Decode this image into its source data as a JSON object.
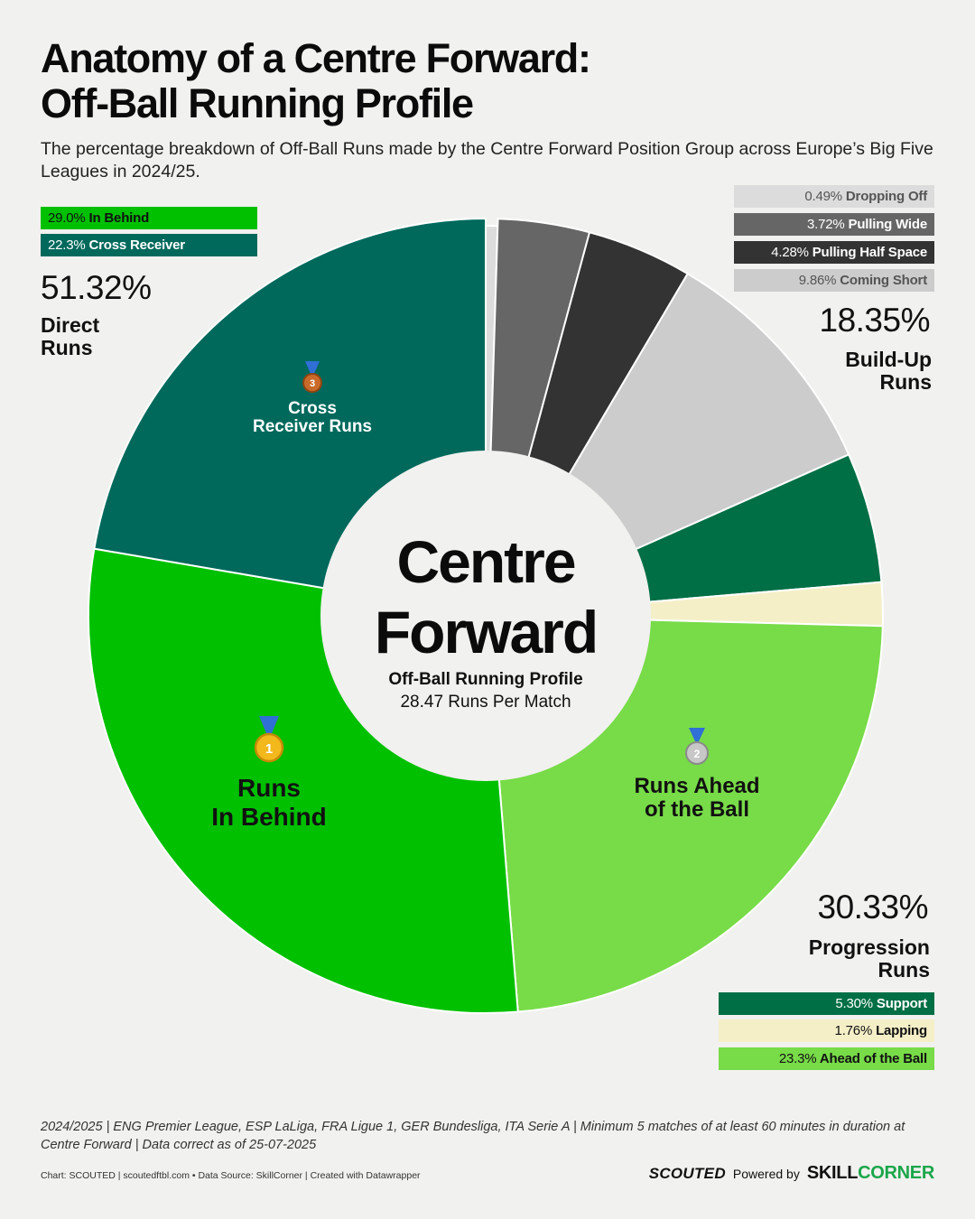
{
  "header": {
    "title_line1": "Anatomy of a Centre Forward:",
    "title_line2": "Off-Ball Running Profile",
    "subtitle": "The percentage breakdown of Off-Ball Runs made by the Centre Forward Position Group across Europe’s Big Five Leagues in 2024/25."
  },
  "center": {
    "line1": "Centre",
    "line2": "Forward",
    "sub1": "Off-Ball Running Profile",
    "sub2": "28.47 Runs Per Match"
  },
  "groups": {
    "direct": {
      "pct": "51.32%",
      "label1": "Direct",
      "label2": "Runs"
    },
    "buildup": {
      "pct": "18.35%",
      "label1": "Build-Up",
      "label2": "Runs"
    },
    "progression": {
      "pct": "30.33%",
      "label1": "Progression",
      "label2": "Runs"
    }
  },
  "legends": {
    "direct": [
      {
        "pct": "29.0%",
        "name": "In Behind",
        "color": "#00c000",
        "text_color": "#111111"
      },
      {
        "pct": "22.3%",
        "name": "Cross Receiver",
        "color": "#00695c",
        "text_color": "#ffffff"
      }
    ],
    "buildup": [
      {
        "pct": "0.49%",
        "name": "Dropping Off",
        "color": "#dcdcdc",
        "text_color": "#555555"
      },
      {
        "pct": "3.72%",
        "name": "Pulling Wide",
        "color": "#666666",
        "text_color": "#ffffff"
      },
      {
        "pct": "4.28%",
        "name": "Pulling Half Space",
        "color": "#333333",
        "text_color": "#ffffff"
      },
      {
        "pct": "9.86%",
        "name": "Coming Short",
        "color": "#cccccc",
        "text_color": "#555555"
      }
    ],
    "progression": [
      {
        "pct": "5.30%",
        "name": "Support",
        "color": "#006f45",
        "text_color": "#ffffff"
      },
      {
        "pct": "1.76%",
        "name": "Lapping",
        "color": "#f5efc8",
        "text_color": "#111111"
      },
      {
        "pct": "23.3%",
        "name": "Ahead of the Ball",
        "color": "#78db48",
        "text_color": "#111111"
      }
    ]
  },
  "slice_labels": {
    "cross": {
      "medal": "3",
      "line1": "Cross",
      "line2": "Receiver Runs"
    },
    "behind": {
      "medal": "1",
      "line1": "Runs",
      "line2": "In Behind"
    },
    "ahead": {
      "medal": "2",
      "line1": "Runs Ahead",
      "line2": "of the Ball"
    }
  },
  "chart_data": {
    "type": "pie",
    "title": "Anatomy of a Centre Forward: Off-Ball Running Profile",
    "start_angle_deg": 0,
    "direction": "clockwise",
    "donut": true,
    "categories": [
      "Dropping Off",
      "Pulling Wide",
      "Pulling Half Space",
      "Coming Short",
      "Support",
      "Lapping",
      "Ahead of the Ball",
      "In Behind",
      "Cross Receiver"
    ],
    "values": [
      0.49,
      3.72,
      4.28,
      9.86,
      5.3,
      1.76,
      23.3,
      29.0,
      22.3
    ],
    "colors": [
      "#dcdcdc",
      "#666666",
      "#333333",
      "#cccccc",
      "#006f45",
      "#f5efc8",
      "#78db48",
      "#00c000",
      "#00695c"
    ],
    "groups": [
      {
        "name": "Build-Up Runs",
        "value": 18.35,
        "members": [
          "Dropping Off",
          "Pulling Wide",
          "Pulling Half Space",
          "Coming Short"
        ]
      },
      {
        "name": "Progression Runs",
        "value": 30.33,
        "members": [
          "Support",
          "Lapping",
          "Ahead of the Ball"
        ]
      },
      {
        "name": "Direct Runs",
        "value": 51.32,
        "members": [
          "In Behind",
          "Cross Receiver"
        ]
      }
    ]
  },
  "footer": {
    "note": "2024/2025 | ENG Premier League, ESP LaLiga, FRA Ligue 1, GER Bundesliga, ITA Serie A | Minimum 5 matches of at least 60 minutes in duration at Centre Forward | Data correct as of 25-07-2025",
    "credits": "Chart: SCOUTED | scoutedftbl.com • Data Source: SkillCorner | Created with Datawrapper",
    "brand_scouted": "SCOUTED",
    "brand_powered": "Powered by",
    "brand_skill": "SKILL",
    "brand_corner": "CORNER"
  }
}
